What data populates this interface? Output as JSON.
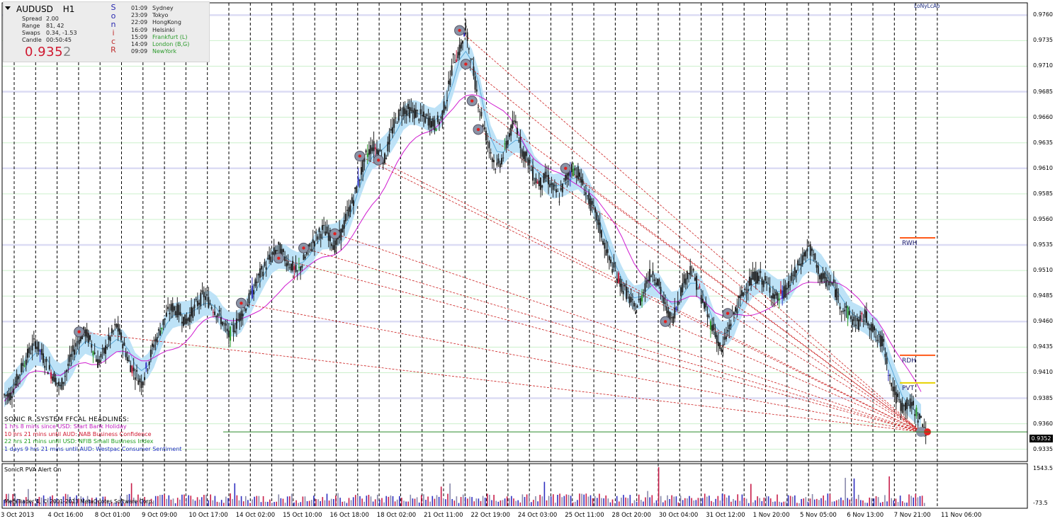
{
  "symbol": "AUDUSD",
  "timeframe": "H1",
  "current_price_main": "0.935",
  "current_price_pip": "2",
  "current_price": "0.9352",
  "stats": [
    {
      "label": "Spread",
      "value": "2.00"
    },
    {
      "label": "Range",
      "value": "81, 42"
    },
    {
      "label": "Swaps",
      "value": "0.34, -1.53"
    },
    {
      "label": "Candle",
      "value": "00:50:45"
    }
  ],
  "sonic_letters": [
    {
      "ch": "S",
      "color": "#2a2ab0"
    },
    {
      "ch": "o",
      "color": "#2a2ab0"
    },
    {
      "ch": "n",
      "color": "#2a2ab0"
    },
    {
      "ch": "i",
      "color": "#c03030"
    },
    {
      "ch": "c",
      "color": "#c03030"
    },
    {
      "ch": "R",
      "color": "#c03030"
    }
  ],
  "sessions": [
    {
      "time": "01:09",
      "name": "Sydney",
      "color": "#222222"
    },
    {
      "time": "23:09",
      "name": "Tokyo",
      "color": "#222222"
    },
    {
      "time": "22:09",
      "name": "HongKong",
      "color": "#222222"
    },
    {
      "time": "16:09",
      "name": "Helsinki",
      "color": "#222222"
    },
    {
      "time": "15:09",
      "name": "Frankfurt  (L)",
      "color": "#2a9a2a"
    },
    {
      "time": "14:09",
      "name": "London  (B,G)",
      "color": "#2a9a2a"
    },
    {
      "time": "09:09",
      "name": "NewYork",
      "color": "#2a9a2a"
    }
  ],
  "session_top_label": "LoNyLcAo",
  "headlines_title": "SONIC R. SYSTEM  FFCAL HEADLINES:",
  "headlines": [
    {
      "text": "1 hrs 8 mins since USD: Start Bank Holiday",
      "color": "#c020c0"
    },
    {
      "text": "10 hrs 21 mins until AUD: NAB Business Confidence",
      "color": "#d01830"
    },
    {
      "text": "22 hrs 21 mins until USD: NFIB Small Business Index",
      "color": "#20a020"
    },
    {
      "text": "1 days 9 hrs 21 mins until AUD: Westpac Consumer Sentiment",
      "color": "#2030c0"
    }
  ],
  "y_axis_labels": [
    "0.9760",
    "0.9735",
    "0.9710",
    "0.9685",
    "0.9660",
    "0.9635",
    "0.9610",
    "0.9585",
    "0.9560",
    "0.9535",
    "0.9510",
    "0.9485",
    "0.9460",
    "0.9435",
    "0.9410",
    "0.9385",
    "0.9360",
    "0.9335"
  ],
  "x_axis_labels": [
    "3 Oct 2013",
    "4 Oct 16:00",
    "8 Oct 01:00",
    "9 Oct 09:00",
    "10 Oct 17:00",
    "14 Oct 02:00",
    "15 Oct 10:00",
    "16 Oct 18:00",
    "18 Oct 02:00",
    "21 Oct 11:00",
    "22 Oct 19:00",
    "24 Oct 03:00",
    "25 Oct 11:00",
    "28 Oct 20:00",
    "30 Oct 04:00",
    "31 Oct 12:00",
    "1 Nov 20:00",
    "5 Nov 05:00",
    "6 Nov 13:00",
    "7 Nov 21:00",
    "11 Nov 06:00"
  ],
  "levels": [
    {
      "label": "RWH",
      "price": 0.9542,
      "color": "#ff5a1a"
    },
    {
      "label": "RDH",
      "price": 0.9427,
      "color": "#ff5a1a"
    },
    {
      "label": "PVT",
      "price": 0.94,
      "color": "#e6d200"
    }
  ],
  "indicator": {
    "title": "SonicR PVA    Alert On",
    "max_label": "1543.5",
    "min_label": "-73.5"
  },
  "copyright": "MetaTrader 4, © 2001-2013 MetaQuotes Software Corp.",
  "colors": {
    "grid_horizontal": "#ccf0cc",
    "band": "#bde2f7",
    "ma_line": "#d01cd0",
    "fib_lines": "#cc2020",
    "price_line": "#2a8a2a"
  },
  "chart_data": {
    "type": "candlestick",
    "y_range": [
      0.9323,
      0.9772
    ],
    "close_series": [
      0.9388,
      0.9402,
      0.9418,
      0.943,
      0.944,
      0.9428,
      0.9415,
      0.9406,
      0.9395,
      0.9412,
      0.943,
      0.9444,
      0.945,
      0.9438,
      0.942,
      0.943,
      0.9444,
      0.9456,
      0.944,
      0.942,
      0.941,
      0.94,
      0.9418,
      0.9438,
      0.9452,
      0.9466,
      0.9474,
      0.947,
      0.946,
      0.9468,
      0.9478,
      0.9486,
      0.9478,
      0.947,
      0.946,
      0.9446,
      0.9455,
      0.9468,
      0.9478,
      0.9492,
      0.9506,
      0.9516,
      0.9525,
      0.9532,
      0.9522,
      0.9515,
      0.9507,
      0.952,
      0.9532,
      0.9542,
      0.955,
      0.9546,
      0.9534,
      0.9546,
      0.9565,
      0.958,
      0.9602,
      0.9622,
      0.9632,
      0.9628,
      0.9618,
      0.9644,
      0.966,
      0.9668,
      0.9666,
      0.9664,
      0.966,
      0.9658,
      0.9652,
      0.9658,
      0.968,
      0.9716,
      0.9725,
      0.9745,
      0.9712,
      0.9676,
      0.9648,
      0.9626,
      0.961,
      0.9622,
      0.9644,
      0.9656,
      0.9628,
      0.9618,
      0.96,
      0.9595,
      0.9602,
      0.959,
      0.9582,
      0.96,
      0.961,
      0.9606,
      0.959,
      0.9575,
      0.9562,
      0.954,
      0.952,
      0.9508,
      0.9495,
      0.9486,
      0.9472,
      0.948,
      0.95,
      0.951,
      0.9495,
      0.9474,
      0.946,
      0.948,
      0.95,
      0.9512,
      0.9498,
      0.948,
      0.9462,
      0.945,
      0.943,
      0.945,
      0.9468,
      0.9482,
      0.9495,
      0.9502,
      0.9505,
      0.9498,
      0.949,
      0.9482,
      0.9488,
      0.9498,
      0.951,
      0.9522,
      0.9533,
      0.952,
      0.9502,
      0.95,
      0.9495,
      0.9478,
      0.947,
      0.9462,
      0.9458,
      0.9466,
      0.9456,
      0.9442,
      0.944,
      0.9405,
      0.9386,
      0.9376,
      0.938,
      0.9374,
      0.9362,
      0.9352
    ]
  }
}
